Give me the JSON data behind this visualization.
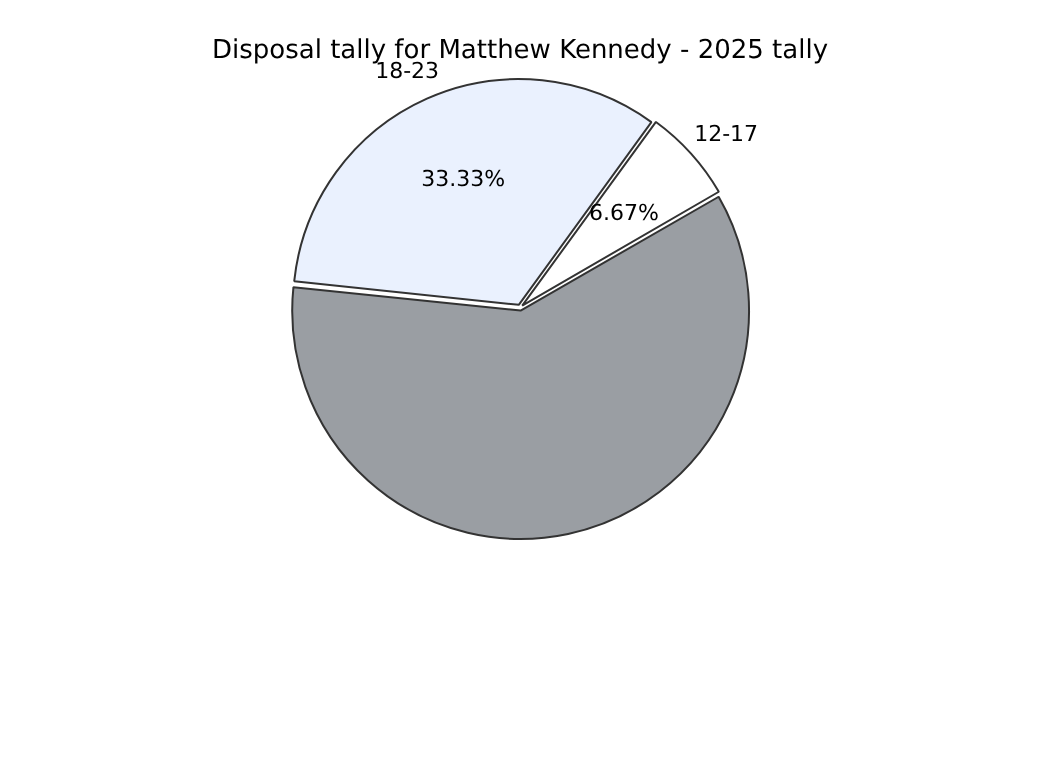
{
  "chart_data": {
    "type": "pie",
    "title": "Disposal tally for Matthew Kennedy - 2025 tally",
    "categories": [
      "18-23",
      "12-17",
      null
    ],
    "values": [
      33.33,
      6.67,
      60
    ],
    "colors": [
      "#eaf1fe",
      "#ffffff",
      "#9a9ea3"
    ],
    "value_labels": [
      "33.33%",
      "6.67%",
      null
    ],
    "legend": false
  }
}
